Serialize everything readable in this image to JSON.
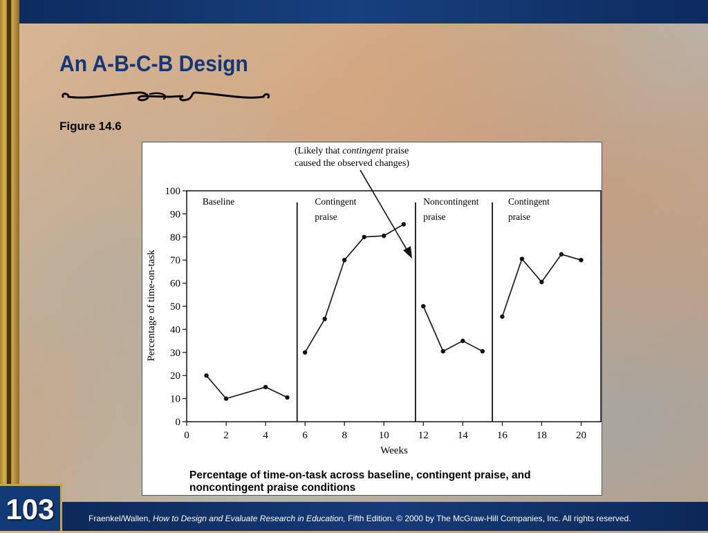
{
  "slide": {
    "title": "An A-B-C-B Design",
    "figure_label": "Figure 14.6",
    "slide_number": "103",
    "footer_author": "Fraenkel/Wallen, ",
    "footer_book": "How to Design and Evaluate Research in Education,",
    "footer_rest": " Fifth Edition. © 2000 by The McGraw-Hill Companies, Inc. All rights reserved."
  },
  "colors": {
    "title": "#14377a",
    "bars": "#0c2a5c",
    "stripe": "#c9a44a"
  },
  "chart_data": {
    "type": "line",
    "ylabel": "Percentage of time-on-task",
    "xlabel": "Weeks",
    "caption_line1": "Percentage of time-on-task across baseline, contingent praise, and",
    "caption_line2": "noncontingent praise conditions",
    "annotation_line1_pre": "(Likely that ",
    "annotation_line1_em": "contingent",
    "annotation_line1_post": " praise",
    "annotation_line2": "caused the observed changes)",
    "xlim": [
      0,
      21
    ],
    "ylim": [
      0,
      100
    ],
    "x_ticks": [
      0,
      2,
      4,
      6,
      8,
      10,
      12,
      14,
      16,
      18,
      20
    ],
    "y_ticks": [
      0,
      10,
      20,
      30,
      40,
      50,
      60,
      70,
      80,
      90,
      100
    ],
    "phase_dividers": [
      5.6,
      11.6,
      15.5
    ],
    "phases": [
      {
        "label_line1": "Baseline",
        "label_line2": "",
        "x": [
          1,
          2,
          4,
          5.1
        ],
        "y": [
          20,
          10,
          15,
          10.5
        ]
      },
      {
        "label_line1": "Contingent",
        "label_line2": "praise",
        "x": [
          6,
          7,
          8,
          9,
          10,
          11
        ],
        "y": [
          30,
          44.5,
          70,
          80,
          80.5,
          85.5
        ]
      },
      {
        "label_line1": "Noncontingent",
        "label_line2": "praise",
        "x": [
          12,
          13,
          14,
          15
        ],
        "y": [
          50,
          30.5,
          35,
          30.5
        ]
      },
      {
        "label_line1": "Contingent",
        "label_line2": "praise",
        "x": [
          16,
          17,
          18,
          19,
          20
        ],
        "y": [
          45.5,
          70.5,
          60.5,
          72.5,
          70
        ]
      }
    ]
  }
}
